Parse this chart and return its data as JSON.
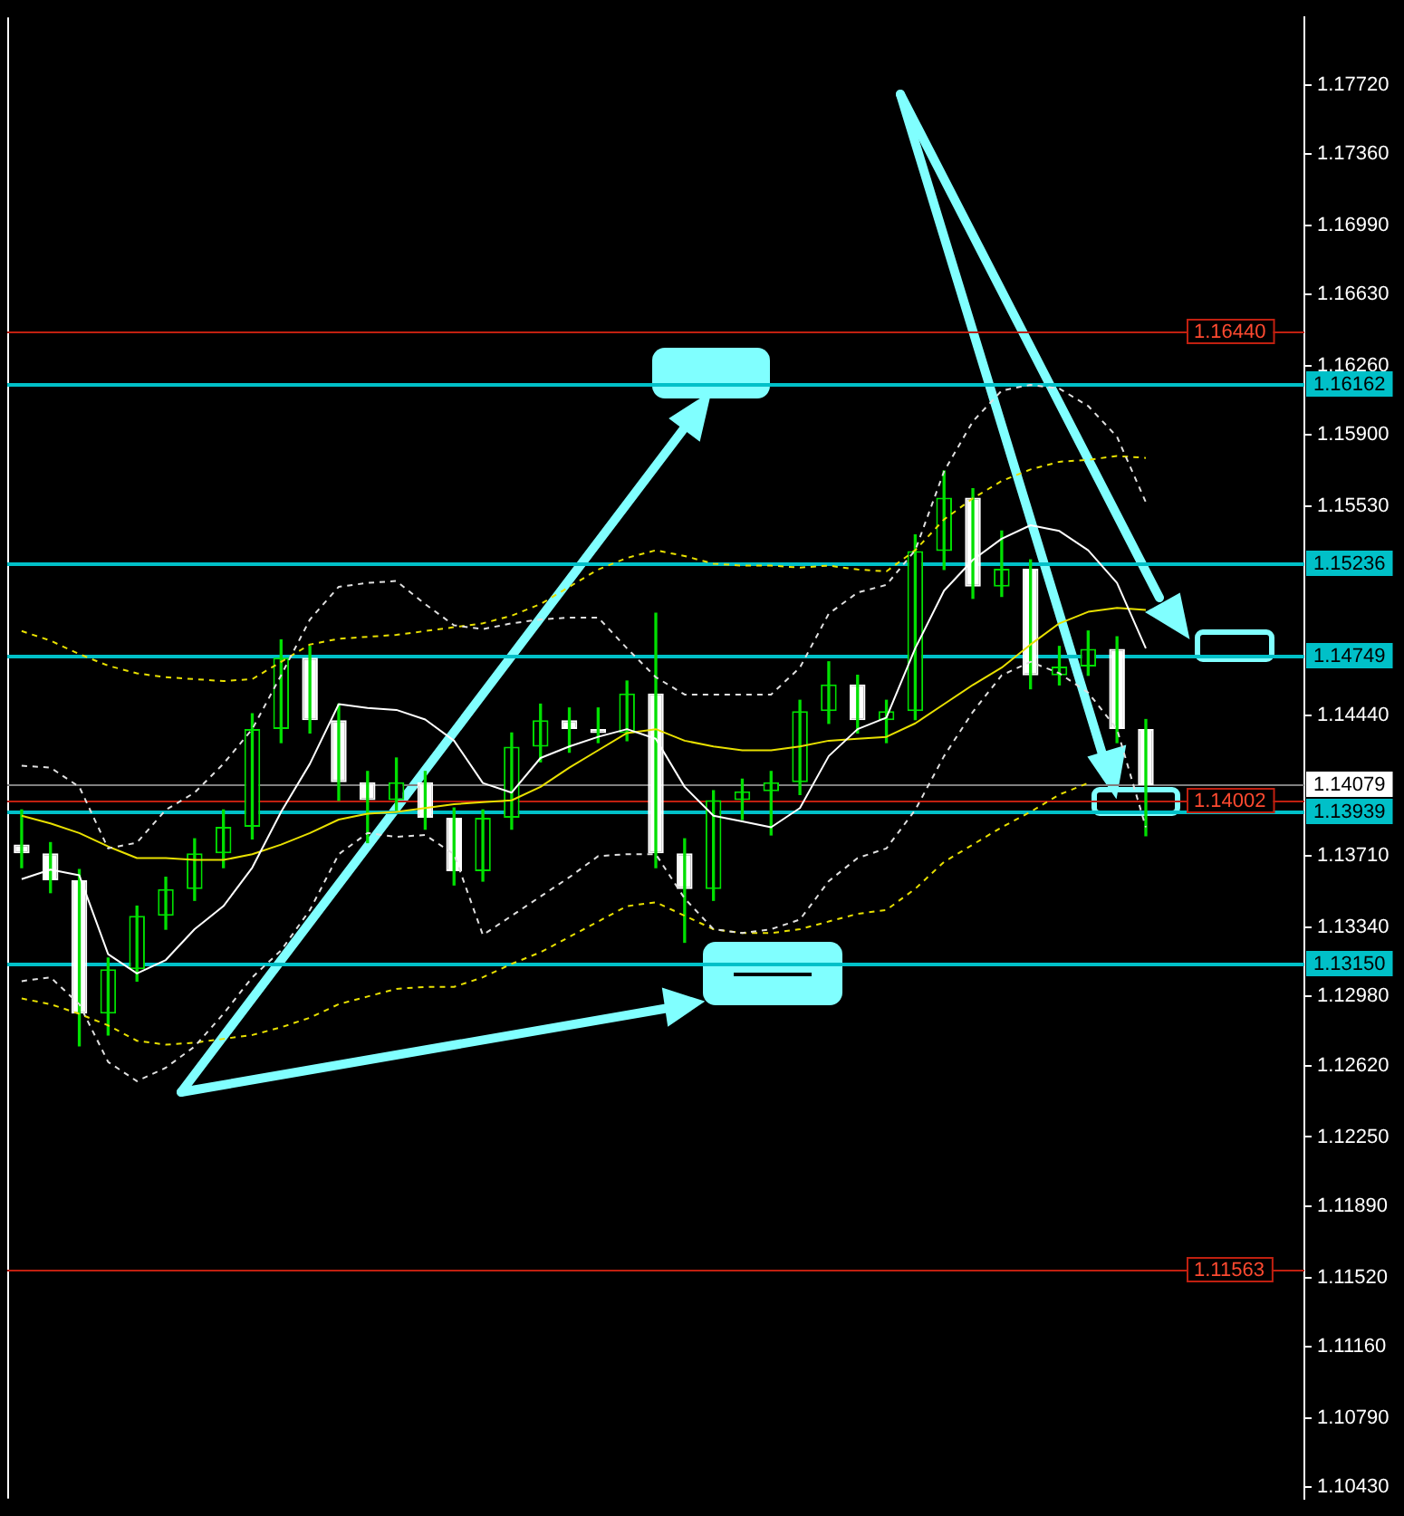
{
  "chart_data": {
    "type": "candlestick",
    "color": "#00e000",
    "colors": [
      "#ffffff",
      "#ffffff",
      "#ffffff",
      "#00e000",
      "#00e000",
      "#00e000",
      "#00e000",
      "#00e000",
      "#00e000",
      "#00e000",
      "#ffffff",
      "#ffffff",
      "#ffffff",
      "#00e000",
      "#ffffff",
      "#ffffff",
      "#00e000",
      "#00e000",
      "#00e000",
      "#ffffff",
      "#ffffff",
      "#00e000",
      "#ffffff",
      "#ffffff",
      "#00e000",
      "#00e000",
      "#00e000",
      "#00e000",
      "#00e000",
      "#ffffff",
      "#00e000",
      "#00e000",
      "#00e000",
      "#ffffff",
      "#00e000",
      "#ffffff",
      "#00e000",
      "#00e000",
      "#ffffff",
      "#ffffff",
      null,
      null,
      null,
      null,
      null
    ],
    "categories": [
      null,
      null,
      null,
      null,
      null,
      null,
      null,
      null,
      null,
      null,
      null,
      null,
      null,
      null,
      null,
      null,
      null,
      null,
      null,
      null,
      null,
      null,
      null,
      null,
      null,
      null,
      null,
      null,
      null,
      null,
      null,
      null,
      null,
      null,
      null,
      null,
      null,
      null,
      null,
      null,
      null,
      null,
      null,
      null,
      null
    ],
    "ohlc": [
      [
        1.1377,
        1.1395,
        1.1365,
        1.13724
      ],
      [
        1.13724,
        1.1378,
        1.1352,
        1.13585
      ],
      [
        1.13585,
        1.1364,
        1.12724,
        1.12891
      ],
      [
        1.12891,
        1.1318,
        1.1278,
        1.13122
      ],
      [
        1.13122,
        1.1345,
        1.1306,
        1.134
      ],
      [
        1.134,
        1.136,
        1.1333,
        1.13539
      ],
      [
        1.13539,
        1.138,
        1.1348,
        1.13724
      ],
      [
        1.13724,
        1.1395,
        1.1365,
        1.13862
      ],
      [
        1.13862,
        1.1445,
        1.138,
        1.14371
      ],
      [
        1.14371,
        1.14834,
        1.143,
        1.14741
      ],
      [
        1.14741,
        1.148,
        1.1435,
        1.14417
      ],
      [
        1.14417,
        1.145,
        1.14,
        1.14094
      ],
      [
        1.14094,
        1.1415,
        1.1378,
        1.14001
      ],
      [
        1.14001,
        1.1422,
        1.1395,
        1.14094
      ],
      [
        1.14094,
        1.1415,
        1.1385,
        1.13909
      ],
      [
        1.13909,
        1.1396,
        1.1356,
        1.13631
      ],
      [
        1.13631,
        1.1395,
        1.1358,
        1.13909
      ],
      [
        1.13909,
        1.1435,
        1.1385,
        1.14279
      ],
      [
        1.14279,
        1.145,
        1.142,
        1.14417
      ],
      [
        1.14417,
        1.1448,
        1.1425,
        1.14371
      ],
      [
        1.14371,
        1.1448,
        1.143,
        1.1435
      ],
      [
        1.1435,
        1.1462,
        1.1431,
        1.14556
      ],
      [
        1.14556,
        1.14972,
        1.1365,
        1.13724
      ],
      [
        1.13724,
        1.138,
        1.13262,
        1.13539
      ],
      [
        1.13539,
        1.1405,
        1.1348,
        1.14001
      ],
      [
        1.14001,
        1.1411,
        1.139,
        1.14047
      ],
      [
        1.14047,
        1.1415,
        1.1382,
        1.14094
      ],
      [
        1.14094,
        1.1452,
        1.1403,
        1.14464
      ],
      [
        1.14464,
        1.1472,
        1.144,
        1.14602
      ],
      [
        1.14602,
        1.1465,
        1.1435,
        1.14417
      ],
      [
        1.14417,
        1.1452,
        1.143,
        1.14464
      ],
      [
        1.14464,
        1.1538,
        1.1442,
        1.15296
      ],
      [
        1.15296,
        1.15712,
        1.152,
        1.15574
      ],
      [
        1.15574,
        1.1562,
        1.1505,
        1.15111
      ],
      [
        1.15111,
        1.154,
        1.1506,
        1.15204
      ],
      [
        1.15204,
        1.1525,
        1.1458,
        1.14649
      ],
      [
        1.14649,
        1.148,
        1.146,
        1.14695
      ],
      [
        1.14695,
        1.1488,
        1.1465,
        1.14787
      ],
      [
        1.14787,
        1.1485,
        1.143,
        1.14371
      ],
      [
        1.14371,
        1.1442,
        1.13816,
        1.14079
      ],
      null,
      null,
      null,
      null,
      null
    ],
    "series": [
      {
        "type": "line",
        "color": "#e0e0e0",
        "line_style": "dashed",
        "values": [
          1.1418,
          1.1417,
          1.1407,
          1.1375,
          1.1378,
          1.1395,
          1.1404,
          1.1419,
          1.1437,
          1.1465,
          1.1494,
          1.1511,
          1.1513,
          1.1514,
          1.1502,
          1.1491,
          1.1489,
          1.1492,
          1.1494,
          1.1495,
          1.1495,
          1.1479,
          1.1464,
          1.1455,
          1.1455,
          1.1455,
          1.1455,
          1.1469,
          1.1497,
          1.1508,
          1.1512,
          1.153,
          1.1571,
          1.1597,
          1.1613,
          1.1616,
          1.1614,
          1.1605,
          1.1589,
          1.1555,
          null,
          null,
          null,
          null,
          null
        ]
      },
      {
        "type": "line",
        "color": "#e0e0e0",
        "line_style": "dashed",
        "values": [
          1.1306,
          1.1308,
          1.1294,
          1.1264,
          1.1254,
          1.1261,
          1.1272,
          1.1289,
          1.1308,
          1.1322,
          1.1343,
          1.1372,
          1.1383,
          1.1381,
          1.1382,
          1.1372,
          1.133,
          1.134,
          1.135,
          1.136,
          1.1371,
          1.1372,
          1.1372,
          1.1349,
          1.1333,
          1.1331,
          1.1333,
          1.1338,
          1.1358,
          1.137,
          1.1375,
          1.1395,
          1.1423,
          1.1446,
          1.1465,
          1.1472,
          1.1466,
          1.1456,
          1.1437,
          1.1386,
          null,
          null,
          null,
          null,
          null
        ]
      },
      {
        "type": "line",
        "color": "#ffffff",
        "line_style": "solid",
        "values": [
          1.1359,
          1.1364,
          1.1361,
          1.132,
          1.131,
          1.1317,
          1.1333,
          1.1345,
          1.1365,
          1.1394,
          1.1419,
          1.145,
          1.1448,
          1.1447,
          1.1442,
          1.1431,
          1.1409,
          1.1404,
          1.1422,
          1.1428,
          1.1433,
          1.1437,
          1.1432,
          1.1407,
          1.1392,
          1.1389,
          1.1386,
          1.1396,
          1.1423,
          1.1437,
          1.1443,
          1.1479,
          1.1509,
          1.1525,
          1.1536,
          1.1543,
          1.154,
          1.153,
          1.1513,
          1.1479,
          null,
          null,
          null,
          null,
          null
        ]
      },
      {
        "type": "line",
        "color": "#e8e000",
        "line_style": "dashed",
        "values": [
          1.1488,
          1.1483,
          1.1476,
          1.147,
          1.1466,
          1.1464,
          1.1463,
          1.1462,
          1.1463,
          1.1472,
          1.1481,
          1.1484,
          1.1485,
          1.1486,
          1.1488,
          1.149,
          1.1492,
          1.1496,
          1.1502,
          1.1511,
          1.152,
          1.1526,
          1.153,
          1.1527,
          1.1523,
          1.1522,
          1.1522,
          1.1521,
          1.1522,
          1.152,
          1.1519,
          1.153,
          1.1546,
          1.1557,
          1.1566,
          1.1572,
          1.1576,
          1.1577,
          1.1579,
          1.1578,
          null,
          null,
          null,
          null,
          null
        ]
      },
      {
        "type": "line",
        "color": "#e8e000",
        "line_style": "solid",
        "values": [
          1.1392,
          1.1388,
          1.1383,
          1.1376,
          1.137,
          1.137,
          1.1369,
          1.1369,
          1.1372,
          1.1377,
          1.1383,
          1.139,
          1.1393,
          1.1394,
          1.1396,
          1.1398,
          1.1399,
          1.14,
          1.1407,
          1.1417,
          1.1426,
          1.1435,
          1.1437,
          1.1431,
          1.1428,
          1.1426,
          1.1426,
          1.1428,
          1.1431,
          1.1432,
          1.1433,
          1.144,
          1.145,
          1.146,
          1.1469,
          1.1481,
          1.1492,
          1.1498,
          1.15,
          1.1499,
          null,
          null,
          null,
          null,
          null
        ]
      },
      {
        "type": "line",
        "color": "#e8e000",
        "line_style": "dashed",
        "values": [
          1.1297,
          1.1294,
          1.1289,
          1.1283,
          1.1275,
          1.1273,
          1.1274,
          1.1276,
          1.1278,
          1.1282,
          1.1287,
          1.1294,
          1.1298,
          1.1302,
          1.1303,
          1.1303,
          1.1308,
          1.1315,
          1.1321,
          1.1329,
          1.1337,
          1.1345,
          1.1347,
          1.134,
          1.1333,
          1.1331,
          1.1331,
          1.1333,
          1.1337,
          1.1341,
          1.1343,
          1.1354,
          1.1368,
          1.1377,
          1.1386,
          1.1394,
          1.1403,
          1.1409,
          null,
          null,
          null,
          null,
          null,
          null,
          null
        ]
      }
    ],
    "ylim": [
      1.1037,
      1.1807
    ],
    "yticks": [
      {
        "value": 1.1772,
        "label": "1.17720"
      },
      {
        "value": 1.1736,
        "label": "1.17360"
      },
      {
        "value": 1.1699,
        "label": "1.16990"
      },
      {
        "value": 1.1663,
        "label": "1.16630"
      },
      {
        "value": 1.1626,
        "label": "1.16260"
      },
      {
        "value": 1.159,
        "label": "1.15900"
      },
      {
        "value": 1.1553,
        "label": "1.15530"
      },
      {
        "value": 1.1444,
        "label": "1.14440"
      },
      {
        "value": 1.1371,
        "label": "1.13710"
      },
      {
        "value": 1.1334,
        "label": "1.13340"
      },
      {
        "value": 1.1298,
        "label": "1.12980"
      },
      {
        "value": 1.1262,
        "label": "1.12620"
      },
      {
        "value": 1.1225,
        "label": "1.12250"
      },
      {
        "value": 1.1189,
        "label": "1.11890"
      },
      {
        "value": 1.1152,
        "label": "1.11520"
      },
      {
        "value": 1.1116,
        "label": "1.11160"
      },
      {
        "value": 1.1079,
        "label": "1.10790"
      },
      {
        "value": 1.1043,
        "label": "1.10430"
      }
    ],
    "ref_lines": [
      {
        "axis": "y",
        "value": 1.1644,
        "label": "1.16440",
        "color": "#c02010"
      },
      {
        "axis": "y",
        "value": 1.16162,
        "label": "1.16162",
        "color": "#00c0c8"
      },
      {
        "axis": "y",
        "value": 1.15236,
        "label": "1.15236",
        "color": "#00c0c8"
      },
      {
        "axis": "y",
        "value": 1.14749,
        "label": "1.14749",
        "color": "#00c0c8"
      },
      {
        "axis": "y",
        "value": 1.14079,
        "label": "1.14079",
        "color": "#808080"
      },
      {
        "axis": "y",
        "value": 1.14002,
        "label": "1.14002",
        "color": "#c02010"
      },
      {
        "axis": "y",
        "value": 1.13939,
        "label": "1.13939",
        "color": "#00c0c8"
      },
      {
        "axis": "y",
        "value": 1.1315,
        "label": "1.13150",
        "color": "#00c0c8"
      },
      {
        "axis": "y",
        "value": 1.11563,
        "label": "1.11563",
        "color": "#c02010"
      }
    ],
    "legend": false
  }
}
